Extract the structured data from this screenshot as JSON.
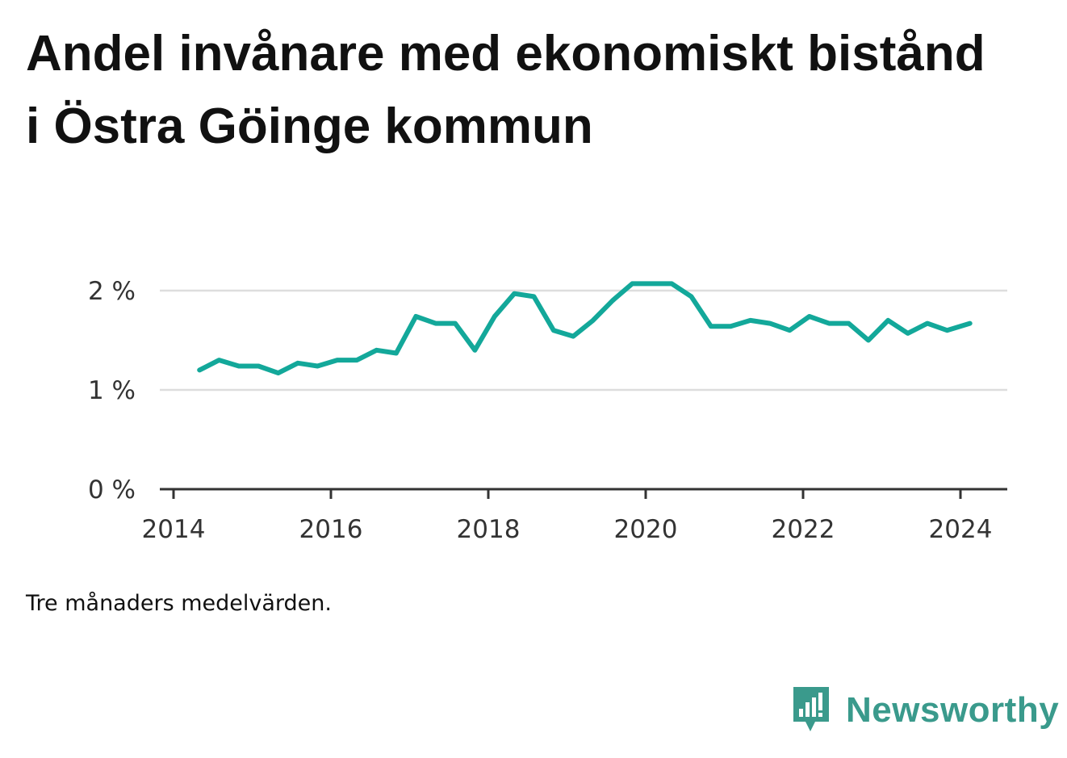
{
  "title": "Andel invånare med ekonomiskt bistånd i Östra Göinge kommun",
  "note": "Tre månaders medelvärden.",
  "brand": {
    "name": "Newsworthy",
    "icon": "bar-chart-speech-bubble-icon",
    "color": "#3a9a8c"
  },
  "chart_data": {
    "type": "line",
    "line_color": "#13a89a",
    "grid": true,
    "ylim": [
      0,
      2.1
    ],
    "yticks": [
      0,
      1,
      2
    ],
    "ytick_labels": [
      "0 %",
      "1 %",
      "2 %"
    ],
    "xticks": [
      2014,
      2016,
      2018,
      2020,
      2022,
      2024
    ],
    "xtick_labels": [
      "2014",
      "2016",
      "2018",
      "2020",
      "2022",
      "2024"
    ],
    "xlim": [
      2014.0,
      2024.6
    ],
    "series": [
      {
        "x": [
          2014.33,
          2014.58,
          2014.83,
          2015.08,
          2015.33,
          2015.58,
          2015.83,
          2016.08,
          2016.33,
          2016.58,
          2016.83,
          2017.08,
          2017.33,
          2017.58,
          2017.83,
          2018.08,
          2018.33,
          2018.58,
          2018.83,
          2019.08,
          2019.33,
          2019.58,
          2019.83,
          2020.08,
          2020.33,
          2020.58,
          2020.83,
          2021.08,
          2021.33,
          2021.58,
          2021.83,
          2022.08,
          2022.33,
          2022.58,
          2022.83,
          2023.08,
          2023.33,
          2023.58,
          2023.83,
          2024.12
        ],
        "values": [
          1.2,
          1.3,
          1.24,
          1.24,
          1.17,
          1.27,
          1.24,
          1.3,
          1.3,
          1.4,
          1.37,
          1.74,
          1.67,
          1.67,
          1.4,
          1.74,
          1.97,
          1.94,
          1.6,
          1.54,
          1.7,
          1.9,
          2.07,
          2.07,
          2.07,
          1.94,
          1.64,
          1.64,
          1.7,
          1.67,
          1.6,
          1.74,
          1.67,
          1.67,
          1.5,
          1.7,
          1.57,
          1.67,
          1.6,
          1.67
        ]
      }
    ]
  }
}
